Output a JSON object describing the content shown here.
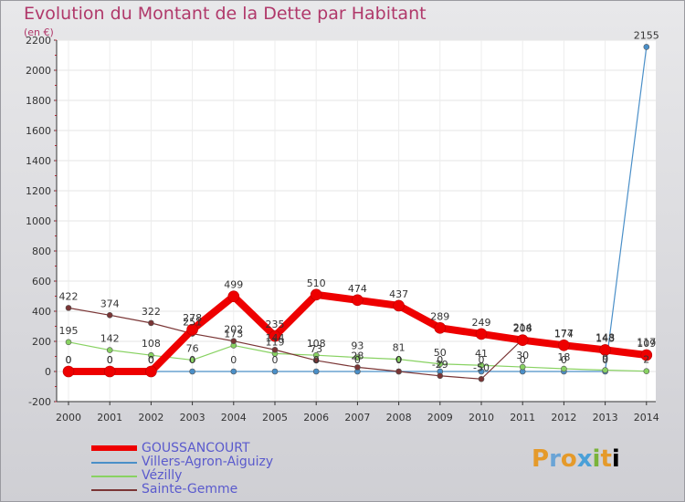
{
  "chart_data": {
    "type": "line",
    "title": "Evolution du Montant de la Dette par Habitant",
    "subtitle": "(en €)",
    "x": [
      "2000",
      "2001",
      "2002",
      "2003",
      "2004",
      "2005",
      "2006",
      "2007",
      "2008",
      "2009",
      "2010",
      "2011",
      "2012",
      "2013",
      "2014"
    ],
    "yticks": [
      "-200",
      "0",
      "200",
      "400",
      "600",
      "800",
      "1000",
      "1200",
      "1400",
      "1600",
      "1800",
      "2000",
      "2200"
    ],
    "ylim": [
      -200,
      2200
    ],
    "legend_placement": "bottom-left",
    "series": [
      {
        "name": "GOUSSANCOURT",
        "color": "#ee0000",
        "values": [
          0,
          0,
          0,
          278,
          499,
          235,
          510,
          474,
          437,
          289,
          249,
          208,
          174,
          143,
          109
        ],
        "labels": [
          "0",
          "0",
          "0",
          "278",
          "499",
          "235",
          "510",
          "474",
          "437",
          "289",
          "249",
          "208",
          "174",
          "143",
          "109"
        ]
      },
      {
        "name": "Villers-Agron-Aiguizy",
        "color": "#4a8fc8",
        "values": [
          0,
          0,
          0,
          0,
          0,
          0,
          0,
          0,
          0,
          0,
          0,
          0,
          0,
          0,
          2155
        ],
        "labels": [
          "0",
          "0",
          "0",
          "0",
          "0",
          "0",
          "0",
          "0",
          "0",
          "0",
          "0",
          "0",
          "0",
          "0",
          "2155"
        ]
      },
      {
        "name": "Vézilly",
        "color": "#88d262",
        "values": [
          195,
          142,
          108,
          76,
          173,
          119,
          108,
          93,
          81,
          50,
          41,
          30,
          18,
          9,
          2
        ],
        "labels": [
          "195",
          "142",
          "108",
          "76",
          "173",
          "119",
          "108",
          "93",
          "81",
          "50",
          "41",
          "30",
          "18",
          "9",
          "2"
        ]
      },
      {
        "name": "Sainte-Gemme",
        "color": "#7a3535",
        "values": [
          422,
          374,
          322,
          251,
          202,
          144,
          73,
          28,
          0,
          -29,
          -50,
          214,
          177,
          148,
          117
        ],
        "labels": [
          "422",
          "374",
          "322",
          "251",
          "202",
          "144",
          "73",
          "28",
          "0",
          "-29",
          "-50",
          "214",
          "177",
          "148",
          "117"
        ]
      }
    ]
  },
  "logo": {
    "letters": [
      "P",
      "r",
      "o",
      "x",
      "i",
      "t",
      "i"
    ]
  }
}
